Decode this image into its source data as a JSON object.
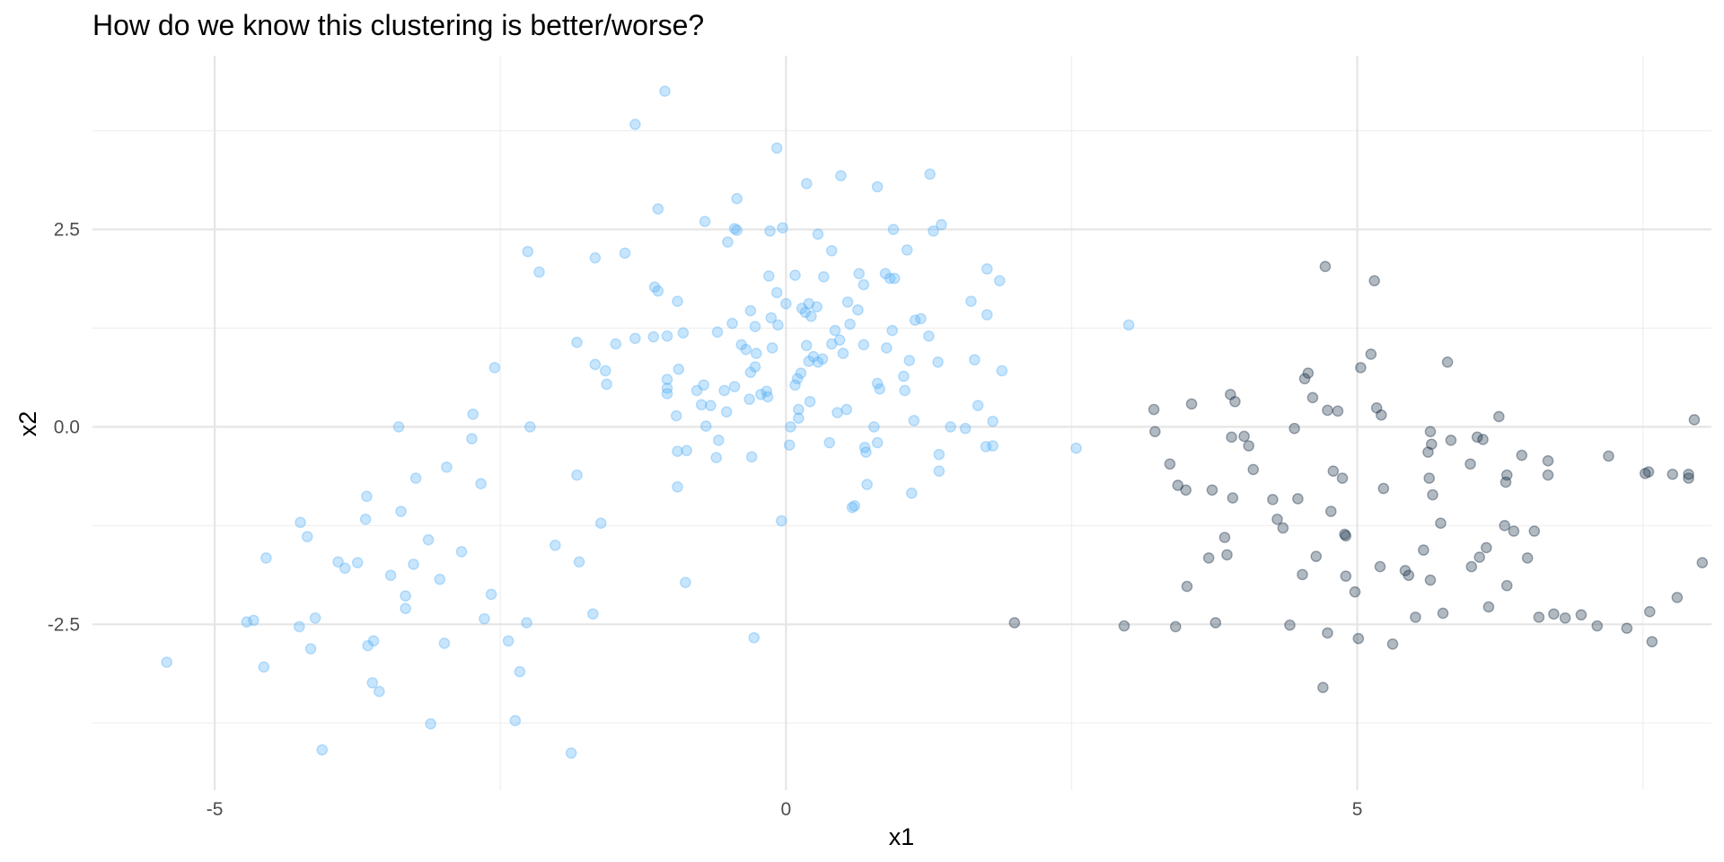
{
  "chart_data": {
    "type": "scatter",
    "title": "How do we know this clustering is better/worse?",
    "xlabel": "x1",
    "ylabel": "x2",
    "xlim": [
      -6.07,
      8.1
    ],
    "ylim": [
      -4.6,
      4.7
    ],
    "x_ticks": [
      -5,
      0,
      5
    ],
    "x_tick_labels": [
      "-5",
      "0",
      "5"
    ],
    "y_ticks": [
      -2.5,
      0.0,
      2.5
    ],
    "y_tick_labels": [
      "-2.5",
      "0.0",
      "2.5"
    ],
    "x_minor_ticks": [
      -2.5,
      2.5,
      7.5
    ],
    "y_minor_ticks": [
      -3.75,
      -1.25,
      1.25,
      3.75
    ],
    "grid": true,
    "legend": "none",
    "point_alpha": 0.33,
    "series": [
      {
        "color": "#56B1F7",
        "points": [
          [
            -5.42,
            -2.98
          ],
          [
            -4.72,
            -2.47
          ],
          [
            -4.66,
            -2.45
          ],
          [
            -4.57,
            -3.04
          ],
          [
            -4.55,
            -1.66
          ],
          [
            -4.26,
            -2.53
          ],
          [
            -4.25,
            -1.21
          ],
          [
            -4.19,
            -1.39
          ],
          [
            -4.16,
            -2.81
          ],
          [
            -4.12,
            -2.42
          ],
          [
            -4.06,
            -4.09
          ],
          [
            -3.92,
            -1.71
          ],
          [
            -3.86,
            -1.79
          ],
          [
            -3.75,
            -1.72
          ],
          [
            -3.68,
            -1.17
          ],
          [
            -3.67,
            -0.88
          ],
          [
            -3.66,
            -2.77
          ],
          [
            -3.62,
            -3.24
          ],
          [
            -3.61,
            -2.71
          ],
          [
            -3.56,
            -3.35
          ],
          [
            -3.46,
            -1.88
          ],
          [
            -3.39,
            0.0
          ],
          [
            -3.37,
            -1.07
          ],
          [
            -3.33,
            -2.14
          ],
          [
            -3.33,
            -2.3
          ],
          [
            -3.26,
            -1.74
          ],
          [
            -3.24,
            -0.65
          ],
          [
            -3.13,
            -1.43
          ],
          [
            -3.11,
            -3.76
          ],
          [
            -3.03,
            -1.93
          ],
          [
            -2.99,
            -2.74
          ],
          [
            -2.97,
            -0.51
          ],
          [
            -2.84,
            -1.58
          ],
          [
            -2.75,
            -0.15
          ],
          [
            -2.74,
            0.16
          ],
          [
            -2.67,
            -0.72
          ],
          [
            -2.64,
            -2.43
          ],
          [
            -2.58,
            -2.12
          ],
          [
            -2.55,
            0.75
          ],
          [
            -2.43,
            -2.71
          ],
          [
            -2.37,
            -3.72
          ],
          [
            -2.33,
            -3.1
          ],
          [
            -2.27,
            -2.48
          ],
          [
            -2.26,
            2.22
          ],
          [
            -2.24,
            0.0
          ],
          [
            -2.16,
            1.96
          ],
          [
            -2.02,
            -1.5
          ],
          [
            -1.88,
            -4.13
          ],
          [
            -1.83,
            -0.61
          ],
          [
            -1.83,
            1.07
          ],
          [
            -1.81,
            -1.71
          ],
          [
            -1.69,
            -2.37
          ],
          [
            -1.67,
            2.14
          ],
          [
            -1.67,
            0.79
          ],
          [
            -1.62,
            -1.22
          ],
          [
            -1.58,
            0.71
          ],
          [
            -1.57,
            0.54
          ],
          [
            -1.49,
            1.05
          ],
          [
            -1.41,
            2.2
          ],
          [
            -1.32,
            3.83
          ],
          [
            -1.32,
            1.12
          ],
          [
            -1.16,
            1.14
          ],
          [
            -1.15,
            1.77
          ],
          [
            -1.12,
            2.76
          ],
          [
            -1.12,
            1.72
          ],
          [
            -1.06,
            4.25
          ],
          [
            -1.04,
            0.6
          ],
          [
            -1.04,
            1.15
          ],
          [
            -1.04,
            0.49
          ],
          [
            -1.04,
            0.42
          ],
          [
            -0.96,
            0.14
          ],
          [
            -0.95,
            1.59
          ],
          [
            -0.95,
            -0.31
          ],
          [
            -0.95,
            -0.76
          ],
          [
            -0.94,
            0.73
          ],
          [
            -0.9,
            1.19
          ],
          [
            -0.88,
            -1.97
          ],
          [
            -0.87,
            -0.3
          ],
          [
            -0.78,
            0.46
          ],
          [
            -0.74,
            0.28
          ],
          [
            -0.72,
            0.53
          ],
          [
            -0.71,
            2.6
          ],
          [
            -0.7,
            0.01
          ],
          [
            -0.66,
            0.27
          ],
          [
            -0.61,
            -0.39
          ],
          [
            -0.6,
            1.2
          ],
          [
            -0.59,
            -0.17
          ],
          [
            -0.54,
            0.46
          ],
          [
            -0.52,
            0.19
          ],
          [
            -0.51,
            2.34
          ],
          [
            -0.47,
            1.31
          ],
          [
            -0.45,
            2.51
          ],
          [
            -0.45,
            0.51
          ],
          [
            -0.43,
            2.89
          ],
          [
            -0.43,
            2.49
          ],
          [
            -0.39,
            1.04
          ],
          [
            -0.35,
            0.98
          ],
          [
            -0.32,
            0.35
          ],
          [
            -0.31,
            0.69
          ],
          [
            -0.31,
            1.47
          ],
          [
            -0.3,
            -0.38
          ],
          [
            -0.28,
            -2.67
          ],
          [
            -0.27,
            1.27
          ],
          [
            -0.27,
            0.76
          ],
          [
            -0.26,
            0.93
          ],
          [
            -0.22,
            0.41
          ],
          [
            -0.17,
            0.45
          ],
          [
            -0.16,
            0.38
          ],
          [
            -0.15,
            1.91
          ],
          [
            -0.14,
            2.48
          ],
          [
            -0.13,
            1.38
          ],
          [
            -0.12,
            1.0
          ],
          [
            -0.08,
            3.53
          ],
          [
            -0.08,
            1.7
          ],
          [
            -0.07,
            1.29
          ],
          [
            -0.04,
            -1.19
          ],
          [
            -0.03,
            2.52
          ],
          [
            0.0,
            1.56
          ],
          [
            0.03,
            -0.23
          ],
          [
            0.04,
            0.0
          ],
          [
            0.08,
            1.92
          ],
          [
            0.08,
            0.53
          ],
          [
            0.1,
            0.61
          ],
          [
            0.11,
            0.22
          ],
          [
            0.11,
            0.11
          ],
          [
            0.13,
            0.68
          ],
          [
            0.14,
            1.5
          ],
          [
            0.17,
            1.45
          ],
          [
            0.18,
            1.03
          ],
          [
            0.18,
            3.08
          ],
          [
            0.2,
            1.56
          ],
          [
            0.2,
            0.83
          ],
          [
            0.21,
            0.32
          ],
          [
            0.22,
            1.4
          ],
          [
            0.24,
            0.89
          ],
          [
            0.27,
            1.52
          ],
          [
            0.28,
            2.44
          ],
          [
            0.28,
            0.82
          ],
          [
            0.32,
            0.86
          ],
          [
            0.33,
            1.9
          ],
          [
            0.38,
            -0.2
          ],
          [
            0.4,
            2.23
          ],
          [
            0.4,
            1.05
          ],
          [
            0.43,
            1.22
          ],
          [
            0.45,
            0.18
          ],
          [
            0.47,
            1.1
          ],
          [
            0.48,
            3.18
          ],
          [
            0.5,
            0.93
          ],
          [
            0.53,
            0.22
          ],
          [
            0.54,
            1.58
          ],
          [
            0.56,
            1.3
          ],
          [
            0.58,
            -1.02
          ],
          [
            0.6,
            -1.0
          ],
          [
            0.63,
            1.48
          ],
          [
            0.64,
            1.94
          ],
          [
            0.68,
            1.8
          ],
          [
            0.68,
            1.04
          ],
          [
            0.69,
            -0.26
          ],
          [
            0.7,
            -0.32
          ],
          [
            0.71,
            -0.73
          ],
          [
            0.77,
            0.0
          ],
          [
            0.8,
            3.04
          ],
          [
            0.8,
            0.55
          ],
          [
            0.8,
            -0.2
          ],
          [
            0.82,
            0.48
          ],
          [
            0.87,
            1.94
          ],
          [
            0.88,
            1.0
          ],
          [
            0.91,
            1.88
          ],
          [
            0.93,
            1.22
          ],
          [
            0.94,
            2.5
          ],
          [
            0.95,
            1.88
          ],
          [
            1.03,
            0.64
          ],
          [
            1.04,
            0.46
          ],
          [
            1.06,
            2.24
          ],
          [
            1.08,
            0.84
          ],
          [
            1.1,
            -0.84
          ],
          [
            1.12,
            0.08
          ],
          [
            1.13,
            1.35
          ],
          [
            1.18,
            1.37
          ],
          [
            1.25,
            1.15
          ],
          [
            1.26,
            3.2
          ],
          [
            1.29,
            2.48
          ],
          [
            1.33,
            0.82
          ],
          [
            1.34,
            -0.35
          ],
          [
            1.34,
            -0.56
          ],
          [
            1.36,
            2.56
          ],
          [
            1.44,
            0.0
          ],
          [
            1.57,
            -0.02
          ],
          [
            1.62,
            1.59
          ],
          [
            1.65,
            0.85
          ],
          [
            1.68,
            0.27
          ],
          [
            1.75,
            -0.25
          ],
          [
            1.76,
            1.42
          ],
          [
            1.76,
            2.0
          ],
          [
            1.81,
            -0.24
          ],
          [
            1.81,
            0.07
          ],
          [
            1.87,
            1.85
          ],
          [
            1.89,
            0.71
          ],
          [
            2.54,
            -0.27
          ],
          [
            3.0,
            1.29
          ]
        ]
      },
      {
        "color": "#132B43",
        "points": [
          [
            2.0,
            -2.48
          ],
          [
            2.96,
            -2.52
          ],
          [
            3.22,
            0.22
          ],
          [
            3.23,
            -0.06
          ],
          [
            3.36,
            -0.47
          ],
          [
            3.41,
            -2.53
          ],
          [
            3.43,
            -0.74
          ],
          [
            3.5,
            -0.8
          ],
          [
            3.51,
            -2.02
          ],
          [
            3.55,
            0.29
          ],
          [
            3.7,
            -1.66
          ],
          [
            3.73,
            -0.8
          ],
          [
            3.76,
            -2.48
          ],
          [
            3.84,
            -1.4
          ],
          [
            3.86,
            -1.62
          ],
          [
            3.89,
            0.41
          ],
          [
            3.9,
            -0.13
          ],
          [
            3.91,
            -0.9
          ],
          [
            3.93,
            0.32
          ],
          [
            4.01,
            -0.12
          ],
          [
            4.05,
            -0.24
          ],
          [
            4.09,
            -0.54
          ],
          [
            4.26,
            -0.92
          ],
          [
            4.3,
            -1.17
          ],
          [
            4.35,
            -1.28
          ],
          [
            4.41,
            -2.51
          ],
          [
            4.45,
            -0.02
          ],
          [
            4.48,
            -0.91
          ],
          [
            4.52,
            -1.87
          ],
          [
            4.54,
            0.61
          ],
          [
            4.57,
            0.68
          ],
          [
            4.61,
            0.37
          ],
          [
            4.64,
            -1.64
          ],
          [
            4.72,
            2.03
          ],
          [
            4.74,
            0.21
          ],
          [
            4.74,
            -2.61
          ],
          [
            4.77,
            -1.07
          ],
          [
            4.79,
            -0.56
          ],
          [
            4.87,
            -0.65
          ],
          [
            4.89,
            -1.36
          ],
          [
            4.9,
            -1.38
          ],
          [
            4.9,
            -1.89
          ],
          [
            4.98,
            -2.09
          ],
          [
            5.01,
            -2.68
          ],
          [
            5.03,
            0.75
          ],
          [
            5.12,
            0.92
          ],
          [
            5.15,
            1.85
          ],
          [
            5.17,
            0.24
          ],
          [
            5.2,
            -1.77
          ],
          [
            5.21,
            0.15
          ],
          [
            5.23,
            -0.78
          ],
          [
            5.31,
            -2.75
          ],
          [
            5.42,
            -1.82
          ],
          [
            5.45,
            -1.88
          ],
          [
            5.51,
            -2.41
          ],
          [
            5.58,
            -1.56
          ],
          [
            5.62,
            -0.32
          ],
          [
            5.63,
            -0.65
          ],
          [
            5.64,
            -1.94
          ],
          [
            5.64,
            -0.06
          ],
          [
            5.65,
            -0.22
          ],
          [
            5.66,
            -0.86
          ],
          [
            5.73,
            -1.22
          ],
          [
            5.75,
            -2.36
          ],
          [
            5.79,
            0.82
          ],
          [
            5.82,
            -0.17
          ],
          [
            5.99,
            -0.47
          ],
          [
            6.0,
            -1.77
          ],
          [
            6.05,
            -0.13
          ],
          [
            6.07,
            -1.65
          ],
          [
            6.1,
            -0.16
          ],
          [
            6.13,
            -1.53
          ],
          [
            6.15,
            -2.28
          ],
          [
            6.24,
            0.13
          ],
          [
            6.29,
            -1.25
          ],
          [
            6.3,
            -0.7
          ],
          [
            6.31,
            -0.61
          ],
          [
            6.31,
            -2.01
          ],
          [
            6.37,
            -1.32
          ],
          [
            6.44,
            -0.36
          ],
          [
            6.49,
            -1.66
          ],
          [
            6.55,
            -1.32
          ],
          [
            6.59,
            -2.41
          ],
          [
            6.67,
            -0.43
          ],
          [
            6.67,
            -0.61
          ],
          [
            6.72,
            -2.37
          ],
          [
            6.82,
            -2.42
          ],
          [
            6.96,
            -2.38
          ],
          [
            7.1,
            -2.52
          ],
          [
            7.2,
            -0.37
          ],
          [
            7.36,
            -2.55
          ],
          [
            7.55,
            -0.57
          ],
          [
            7.56,
            -2.34
          ],
          [
            7.58,
            -2.72
          ],
          [
            7.76,
            -0.6
          ],
          [
            7.8,
            -2.16
          ],
          [
            7.9,
            -0.65
          ],
          [
            7.9,
            -0.6
          ],
          [
            7.95,
            0.09
          ],
          [
            8.02,
            -1.72
          ],
          [
            7.52,
            -0.59
          ],
          [
            4.83,
            0.2
          ],
          [
            4.7,
            -3.3
          ]
        ]
      }
    ]
  }
}
